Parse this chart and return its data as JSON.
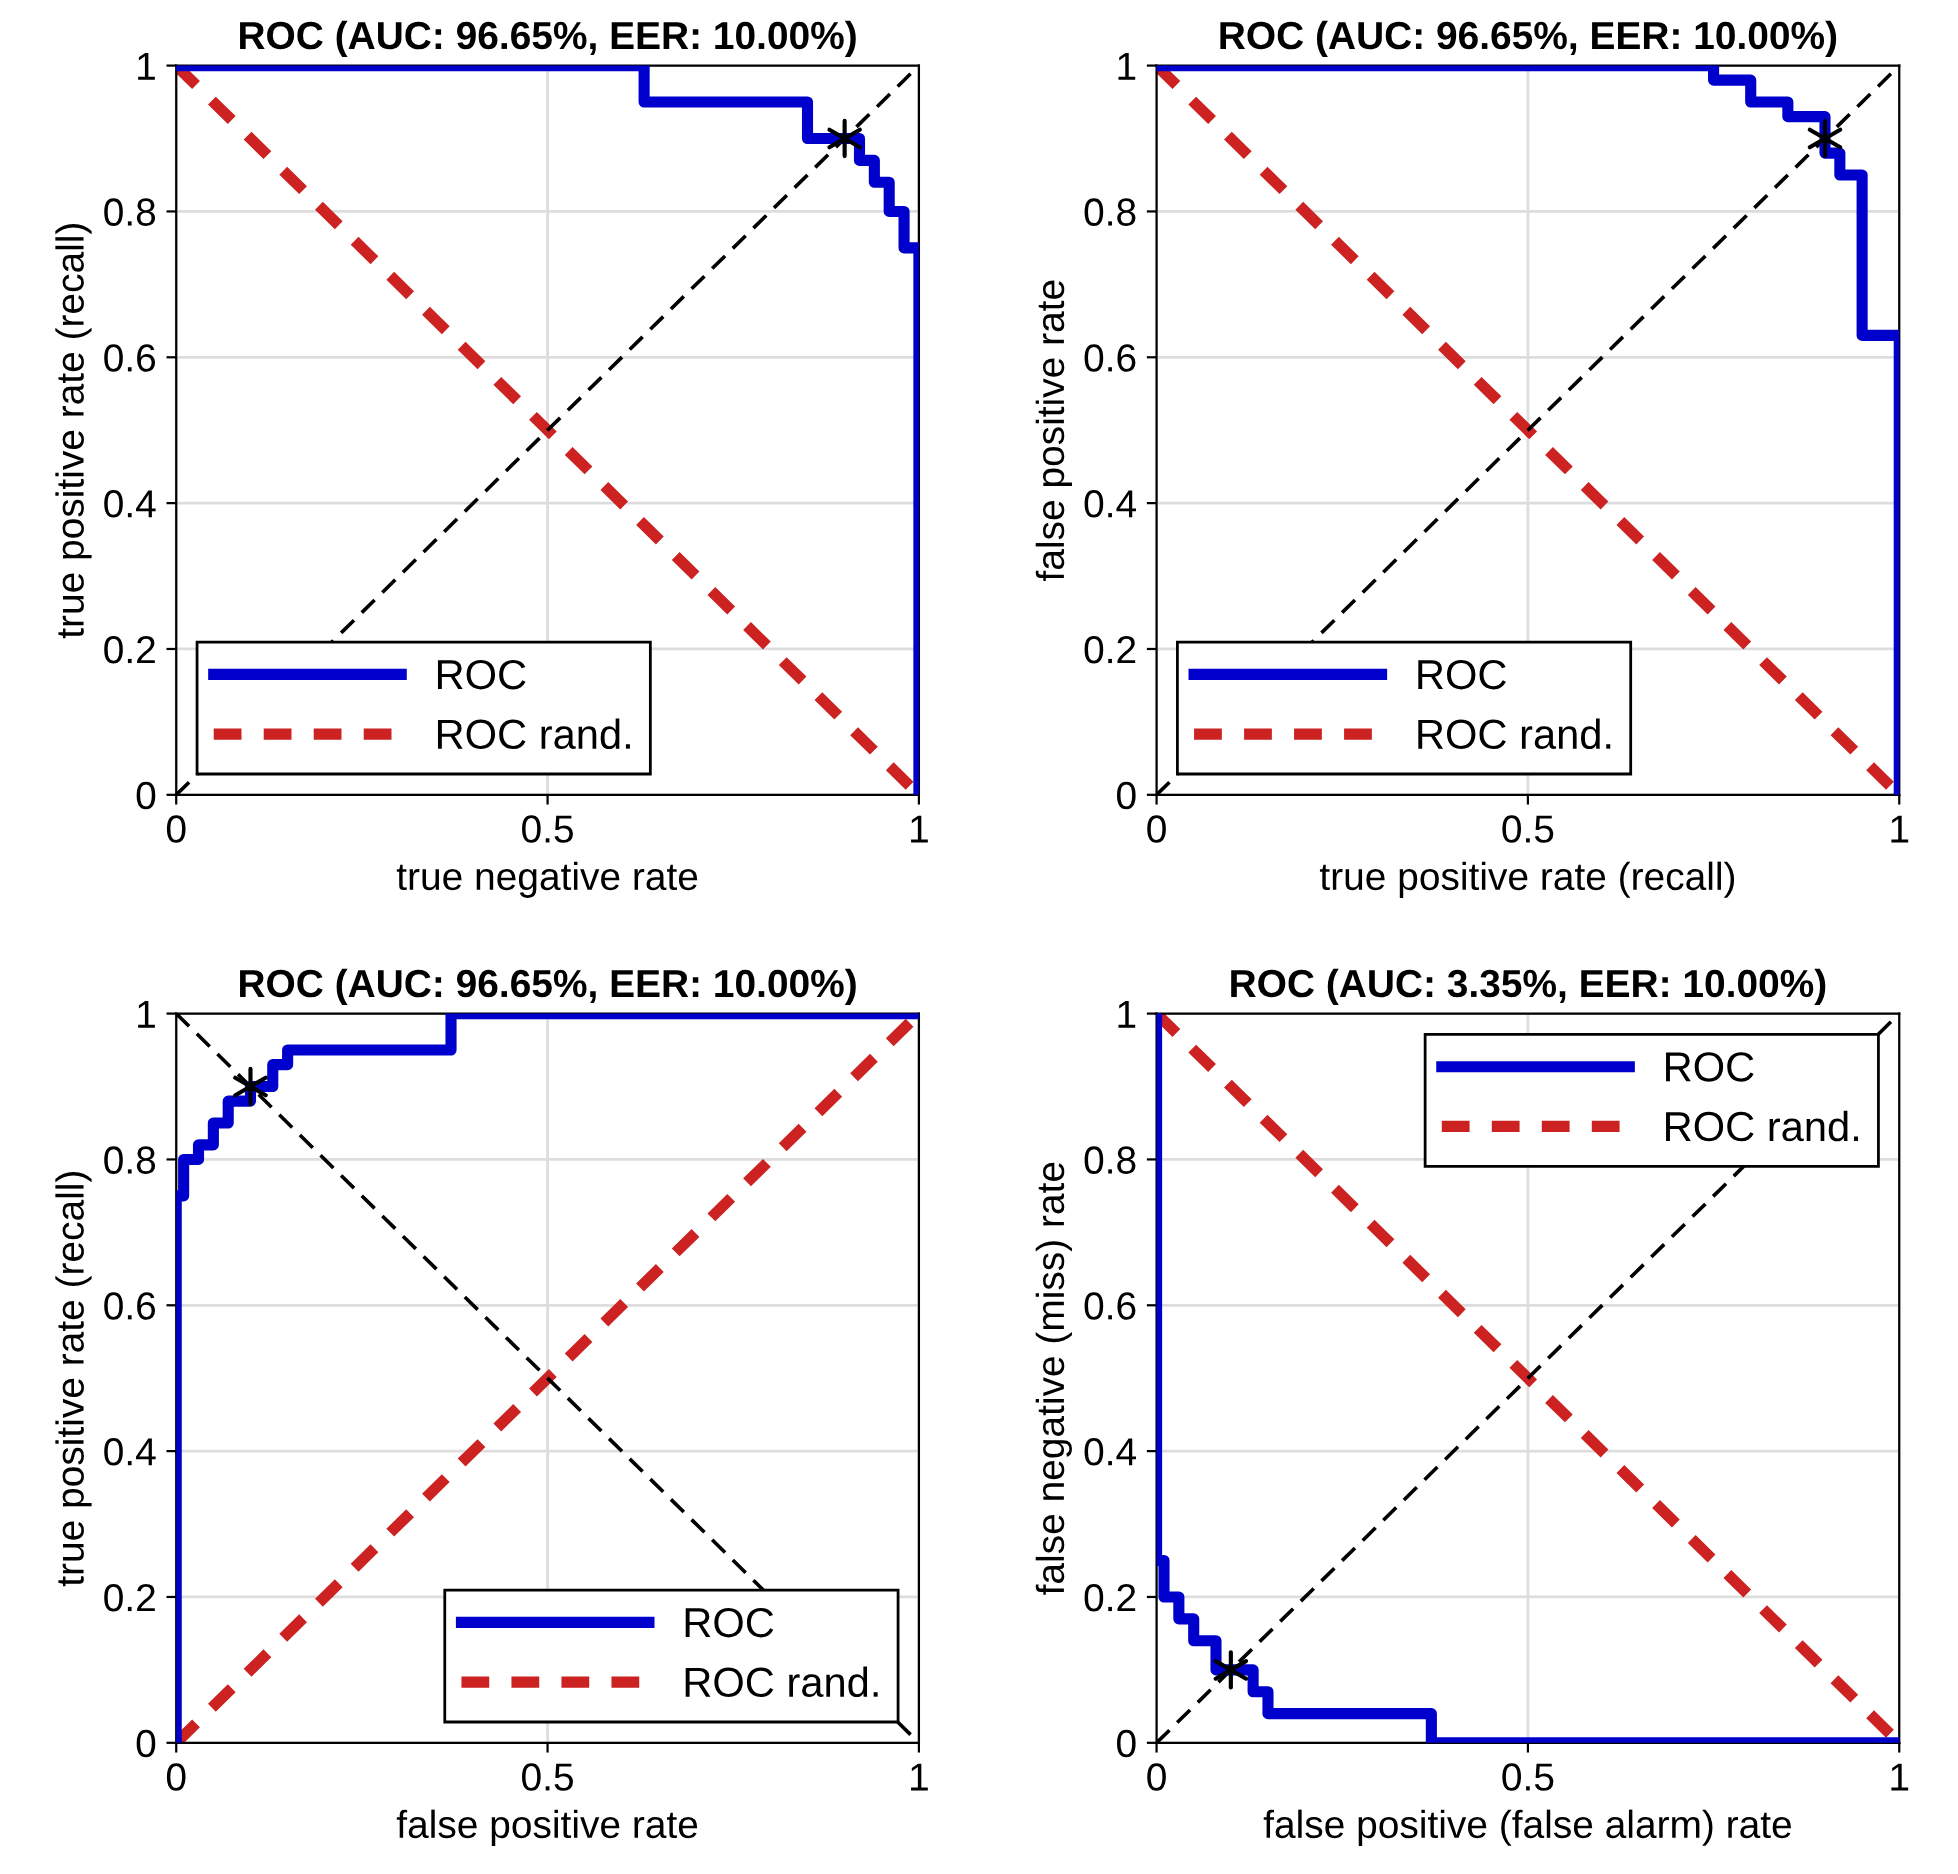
{
  "chart_data": [
    {
      "type": "line",
      "title": "ROC (AUC: 96.65%, EER: 10.00%)",
      "xlabel": "true negative rate",
      "ylabel": "true positive rate (recall)",
      "xlim": [
        0,
        1
      ],
      "ylim": [
        0,
        1
      ],
      "xticks": [
        0,
        0.5,
        1
      ],
      "yticks": [
        0,
        0.2,
        0.4,
        0.6,
        0.8,
        1
      ],
      "grid": true,
      "legend": "bottom left",
      "series": [
        {
          "name": "ROC",
          "color": "#0000cc",
          "line_style": "solid",
          "x": [
            0,
            0.63,
            0.63,
            0.85,
            0.85,
            0.92,
            0.92,
            0.94,
            0.94,
            0.96,
            0.96,
            0.98,
            0.98,
            1,
            1
          ],
          "values": [
            1,
            1,
            0.95,
            0.95,
            0.9,
            0.9,
            0.87,
            0.87,
            0.84,
            0.84,
            0.8,
            0.8,
            0.75,
            0.75,
            0
          ]
        },
        {
          "name": "ROC rand.",
          "color": "#cc2222",
          "line_style": "dashed",
          "x": [
            0,
            1
          ],
          "values": [
            1,
            0
          ]
        },
        {
          "color": "#000000",
          "line_style": "dashed",
          "x": [
            0,
            1
          ],
          "values": [
            0,
            1
          ]
        },
        {
          "type": "scatter",
          "color": "#000000",
          "marker": "cross",
          "x": [
            0.9
          ],
          "values": [
            0.9
          ]
        }
      ]
    },
    {
      "type": "line",
      "title": "ROC (AUC: 96.65%, EER: 10.00%)",
      "xlabel": "true positive rate (recall)",
      "ylabel": "false positive rate",
      "xlim": [
        0,
        1
      ],
      "ylim": [
        0,
        1
      ],
      "xticks": [
        0,
        0.5,
        1
      ],
      "yticks": [
        0,
        0.2,
        0.4,
        0.6,
        0.8,
        1
      ],
      "grid": true,
      "legend": "bottom left",
      "series": [
        {
          "name": "ROC",
          "color": "#0000cc",
          "line_style": "solid",
          "x": [
            0,
            0.75,
            0.75,
            0.8,
            0.8,
            0.85,
            0.85,
            0.9,
            0.9,
            0.92,
            0.92,
            0.95,
            0.95,
            1,
            1
          ],
          "values": [
            1,
            1,
            0.98,
            0.98,
            0.95,
            0.95,
            0.93,
            0.93,
            0.88,
            0.88,
            0.85,
            0.85,
            0.63,
            0.63,
            0
          ]
        },
        {
          "name": "ROC rand.",
          "color": "#cc2222",
          "line_style": "dashed",
          "x": [
            0,
            1
          ],
          "values": [
            1,
            0
          ]
        },
        {
          "color": "#000000",
          "line_style": "dashed",
          "x": [
            0,
            1
          ],
          "values": [
            0,
            1
          ]
        },
        {
          "type": "scatter",
          "color": "#000000",
          "marker": "cross",
          "x": [
            0.9
          ],
          "values": [
            0.9
          ]
        }
      ]
    },
    {
      "type": "line",
      "title": "ROC (AUC: 96.65%, EER: 10.00%)",
      "xlabel": "false positive rate",
      "ylabel": "true positive rate (recall)",
      "xlim": [
        0,
        1
      ],
      "ylim": [
        0,
        1
      ],
      "xticks": [
        0,
        0.5,
        1
      ],
      "yticks": [
        0,
        0.2,
        0.4,
        0.6,
        0.8,
        1
      ],
      "grid": true,
      "legend": "bottom right",
      "series": [
        {
          "name": "ROC",
          "color": "#0000cc",
          "line_style": "solid",
          "x": [
            0,
            0,
            0.01,
            0.01,
            0.03,
            0.03,
            0.05,
            0.05,
            0.07,
            0.07,
            0.1,
            0.1,
            0.13,
            0.13,
            0.15,
            0.15,
            0.37,
            0.37,
            1
          ],
          "values": [
            0,
            0.75,
            0.75,
            0.8,
            0.8,
            0.82,
            0.82,
            0.85,
            0.85,
            0.88,
            0.88,
            0.9,
            0.9,
            0.93,
            0.93,
            0.95,
            0.95,
            1,
            1
          ]
        },
        {
          "name": "ROC rand.",
          "color": "#cc2222",
          "line_style": "dashed",
          "x": [
            0,
            1
          ],
          "values": [
            0,
            1
          ]
        },
        {
          "color": "#000000",
          "line_style": "dashed",
          "x": [
            0,
            1
          ],
          "values": [
            1,
            0
          ]
        },
        {
          "type": "scatter",
          "color": "#000000",
          "marker": "cross",
          "x": [
            0.1
          ],
          "values": [
            0.9
          ]
        }
      ]
    },
    {
      "type": "line",
      "title": "ROC (AUC: 3.35%, EER: 10.00%)",
      "xlabel": "false positive (false alarm) rate",
      "ylabel": "false negative (miss) rate",
      "xlim": [
        0,
        1
      ],
      "ylim": [
        0,
        1
      ],
      "xticks": [
        0,
        0.5,
        1
      ],
      "yticks": [
        0,
        0.2,
        0.4,
        0.6,
        0.8,
        1
      ],
      "grid": true,
      "legend": "top right",
      "series": [
        {
          "name": "ROC",
          "color": "#0000cc",
          "line_style": "solid",
          "x": [
            0,
            0,
            0.01,
            0.01,
            0.03,
            0.03,
            0.05,
            0.05,
            0.08,
            0.08,
            0.13,
            0.13,
            0.15,
            0.15,
            0.37,
            0.37,
            1
          ],
          "values": [
            1,
            0.25,
            0.25,
            0.2,
            0.2,
            0.17,
            0.17,
            0.14,
            0.14,
            0.1,
            0.1,
            0.07,
            0.07,
            0.04,
            0.04,
            0,
            0
          ]
        },
        {
          "name": "ROC rand.",
          "color": "#cc2222",
          "line_style": "dashed",
          "x": [
            0,
            1
          ],
          "values": [
            1,
            0
          ]
        },
        {
          "color": "#000000",
          "line_style": "dashed",
          "x": [
            0,
            1
          ],
          "values": [
            0,
            1
          ]
        },
        {
          "type": "scatter",
          "color": "#000000",
          "marker": "cross",
          "x": [
            0.1
          ],
          "values": [
            0.1
          ]
        }
      ]
    }
  ]
}
